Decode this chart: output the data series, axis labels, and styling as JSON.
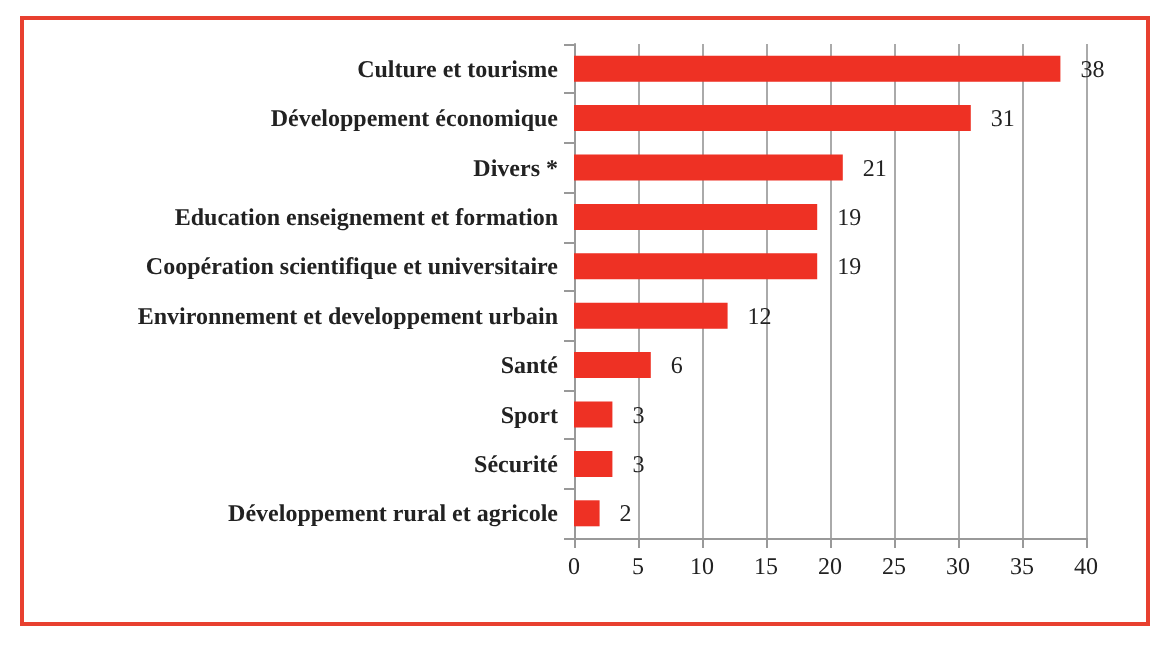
{
  "chart_data": {
    "type": "bar",
    "orientation": "horizontal",
    "categories": [
      "Culture et tourisme",
      "Développement économique",
      "Divers *",
      "Education enseignement et formation",
      "Coopération scientifique et universitaire",
      "Environnement et developpement urbain",
      "Santé",
      "Sport",
      "Sécurité",
      "Développement rural et agricole"
    ],
    "values": [
      38,
      31,
      21,
      19,
      19,
      12,
      6,
      3,
      3,
      2
    ],
    "color": "#ee3124",
    "xlim": [
      0,
      40
    ],
    "xticks": [
      0,
      5,
      10,
      15,
      20,
      25,
      30,
      35,
      40
    ],
    "grid": "x",
    "data_labels": true
  }
}
